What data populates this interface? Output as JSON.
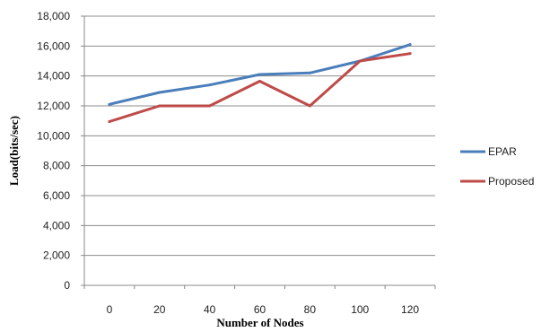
{
  "chart_data": {
    "type": "line",
    "xlabel": "Number of Nodes",
    "ylabel": "Load(bits/sec)",
    "categories": [
      "0",
      "20",
      "40",
      "60",
      "80",
      "100",
      "120"
    ],
    "ylim": [
      0,
      18000
    ],
    "yticks": [
      "0",
      "2,000",
      "4,000",
      "6,000",
      "8,000",
      "10,000",
      "12,000",
      "14,000",
      "16,000",
      "18,000"
    ],
    "grid": true,
    "legend_position": "right",
    "series": [
      {
        "name": "EPAR",
        "color": "#4a7ebb",
        "values": [
          12100,
          12900,
          13400,
          14100,
          14200,
          15000,
          16100
        ]
      },
      {
        "name": "Proposed",
        "color": "#be4b48",
        "values": [
          10950,
          12000,
          12000,
          13650,
          12000,
          15000,
          15500
        ]
      }
    ]
  }
}
